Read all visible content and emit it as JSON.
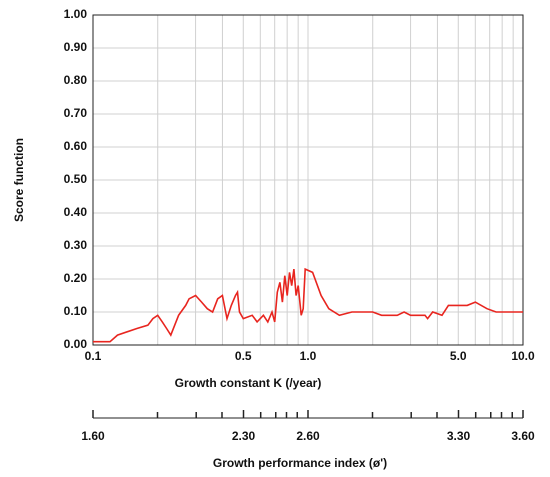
{
  "chart_data": {
    "type": "line",
    "x_label": "Growth constant K (/year)",
    "y_label": "Score function",
    "xscale": "log",
    "xlim": [
      0.1,
      10
    ],
    "xticks": [
      0.1,
      0.5,
      {
        "value": 1,
        "label": "1.0"
      },
      {
        "value": 5,
        "label": "5.0"
      },
      {
        "value": 10,
        "label": "10.0"
      }
    ],
    "x_minor_ticks": [
      0.2,
      0.3,
      0.4,
      0.6,
      0.7,
      0.8,
      0.9,
      2,
      3,
      4,
      6,
      7,
      8,
      9
    ],
    "ylim": [
      0,
      1
    ],
    "yticks": [
      {
        "value": 0,
        "label": "0.00"
      },
      {
        "value": 0.1,
        "label": "0.10"
      },
      {
        "value": 0.2,
        "label": "0.20"
      },
      {
        "value": 0.3,
        "label": "0.30"
      },
      {
        "value": 0.4,
        "label": "0.40"
      },
      {
        "value": 0.5,
        "label": "0.50"
      },
      {
        "value": 0.6,
        "label": "0.60"
      },
      {
        "value": 0.7,
        "label": "0.70"
      },
      {
        "value": 0.8,
        "label": "0.80"
      },
      {
        "value": 0.9,
        "label": "0.90"
      },
      {
        "value": 1,
        "label": "1.00"
      }
    ],
    "grid": true,
    "x2_label": "Growth performance index (ø')",
    "x2lim": [
      1.6,
      3.6
    ],
    "x2ticks": [
      {
        "value": 1.6,
        "label": "1.60"
      },
      {
        "value": 2.3,
        "label": "2.30"
      },
      {
        "value": 2.6,
        "label": "2.60"
      },
      {
        "value": 3.3,
        "label": "3.30"
      },
      {
        "value": 3.6,
        "label": "3.60"
      }
    ],
    "x2_minor_ticks": [
      1.9,
      2.08,
      2.2,
      2.38,
      2.45,
      2.5,
      2.55,
      2.9,
      3.08,
      3.2,
      3.38,
      3.45,
      3.5,
      3.55
    ],
    "x": [
      0.1,
      0.12,
      0.13,
      0.16,
      0.18,
      0.19,
      0.2,
      0.21,
      0.22,
      0.23,
      0.24,
      0.25,
      0.27,
      0.28,
      0.3,
      0.32,
      0.34,
      0.36,
      0.38,
      0.4,
      0.42,
      0.44,
      0.46,
      0.47,
      0.48,
      0.5,
      0.55,
      0.58,
      0.62,
      0.65,
      0.68,
      0.7,
      0.72,
      0.74,
      0.76,
      0.78,
      0.8,
      0.82,
      0.84,
      0.86,
      0.88,
      0.9,
      0.93,
      0.95,
      0.97,
      1.05,
      1.15,
      1.25,
      1.4,
      1.6,
      2.0,
      2.2,
      2.6,
      2.8,
      3.0,
      3.5,
      3.6,
      3.8,
      4.2,
      4.5,
      5.5,
      6.0,
      6.8,
      7.5,
      10
    ],
    "series": [
      {
        "color": "#e8251f",
        "values": [
          0.01,
          0.01,
          0.03,
          0.05,
          0.06,
          0.08,
          0.09,
          0.07,
          0.05,
          0.03,
          0.06,
          0.09,
          0.12,
          0.14,
          0.15,
          0.13,
          0.11,
          0.1,
          0.14,
          0.15,
          0.08,
          0.12,
          0.15,
          0.16,
          0.1,
          0.08,
          0.09,
          0.07,
          0.09,
          0.07,
          0.1,
          0.07,
          0.16,
          0.19,
          0.13,
          0.21,
          0.15,
          0.22,
          0.18,
          0.23,
          0.15,
          0.18,
          0.09,
          0.11,
          0.23,
          0.22,
          0.15,
          0.11,
          0.09,
          0.1,
          0.1,
          0.09,
          0.09,
          0.1,
          0.09,
          0.09,
          0.08,
          0.1,
          0.09,
          0.12,
          0.12,
          0.13,
          0.11,
          0.1,
          0.1
        ]
      }
    ]
  }
}
